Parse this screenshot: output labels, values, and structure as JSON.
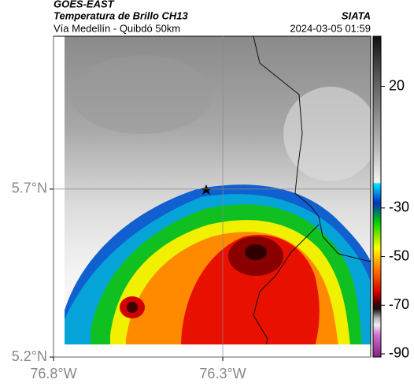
{
  "header": {
    "source": "GOES-EAST",
    "title": "Temperatura de Brillo CH13",
    "agency": "SIATA",
    "route": "Vía Medellín - Quibdó 50km",
    "datetime": "2024-03-05 01:59"
  },
  "map": {
    "latlim": [
      5.2,
      6.155
    ],
    "lonlim": [
      -76.8,
      -75.863
    ],
    "lat_ticks": [
      {
        "value": 5.2,
        "label": "5.2°N"
      },
      {
        "value": 5.7,
        "label": "5.7°N"
      }
    ],
    "lon_ticks": [
      {
        "value": -76.8,
        "label": "76.8°W"
      },
      {
        "value": -76.3,
        "label": "76.3°W"
      }
    ],
    "grid": true
  },
  "colorbar": {
    "lim": [
      -91.3,
      40.6
    ],
    "ticks": [
      20,
      -30,
      -50,
      -70,
      -90
    ]
  }
}
